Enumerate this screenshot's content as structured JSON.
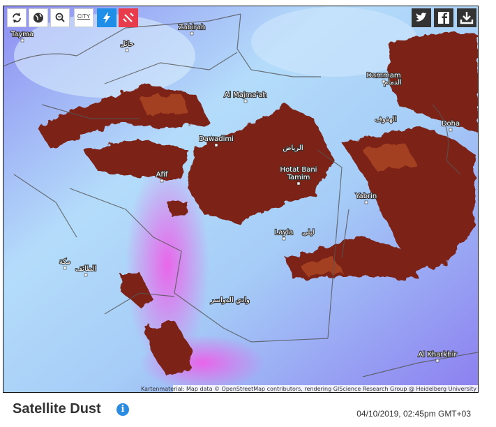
{
  "toolbar": {
    "city_button": "CITY"
  },
  "map": {
    "labels": [
      "Tayma",
      "Zabirah",
      "Dammam",
      "Doha",
      "Al Majma'ah",
      "Dawadimi",
      "Afif",
      "Hotat Bani",
      "Tamim",
      "Yabrin",
      "Layla",
      "Al Kharkhir",
      "الرياض",
      "الدمام",
      "الهفوف",
      "وادي الدواسر",
      "الطائف",
      "مكة",
      "حائل",
      "ليلى"
    ],
    "attribution": "Kartenmaterial: Map data © OpenStreetMap contributors, rendering GIScience Research Group @ Heidelberg University"
  },
  "footer": {
    "title": "Satellite Dust",
    "timestamp": "04/10/2019, 02:45pm GMT+03"
  }
}
